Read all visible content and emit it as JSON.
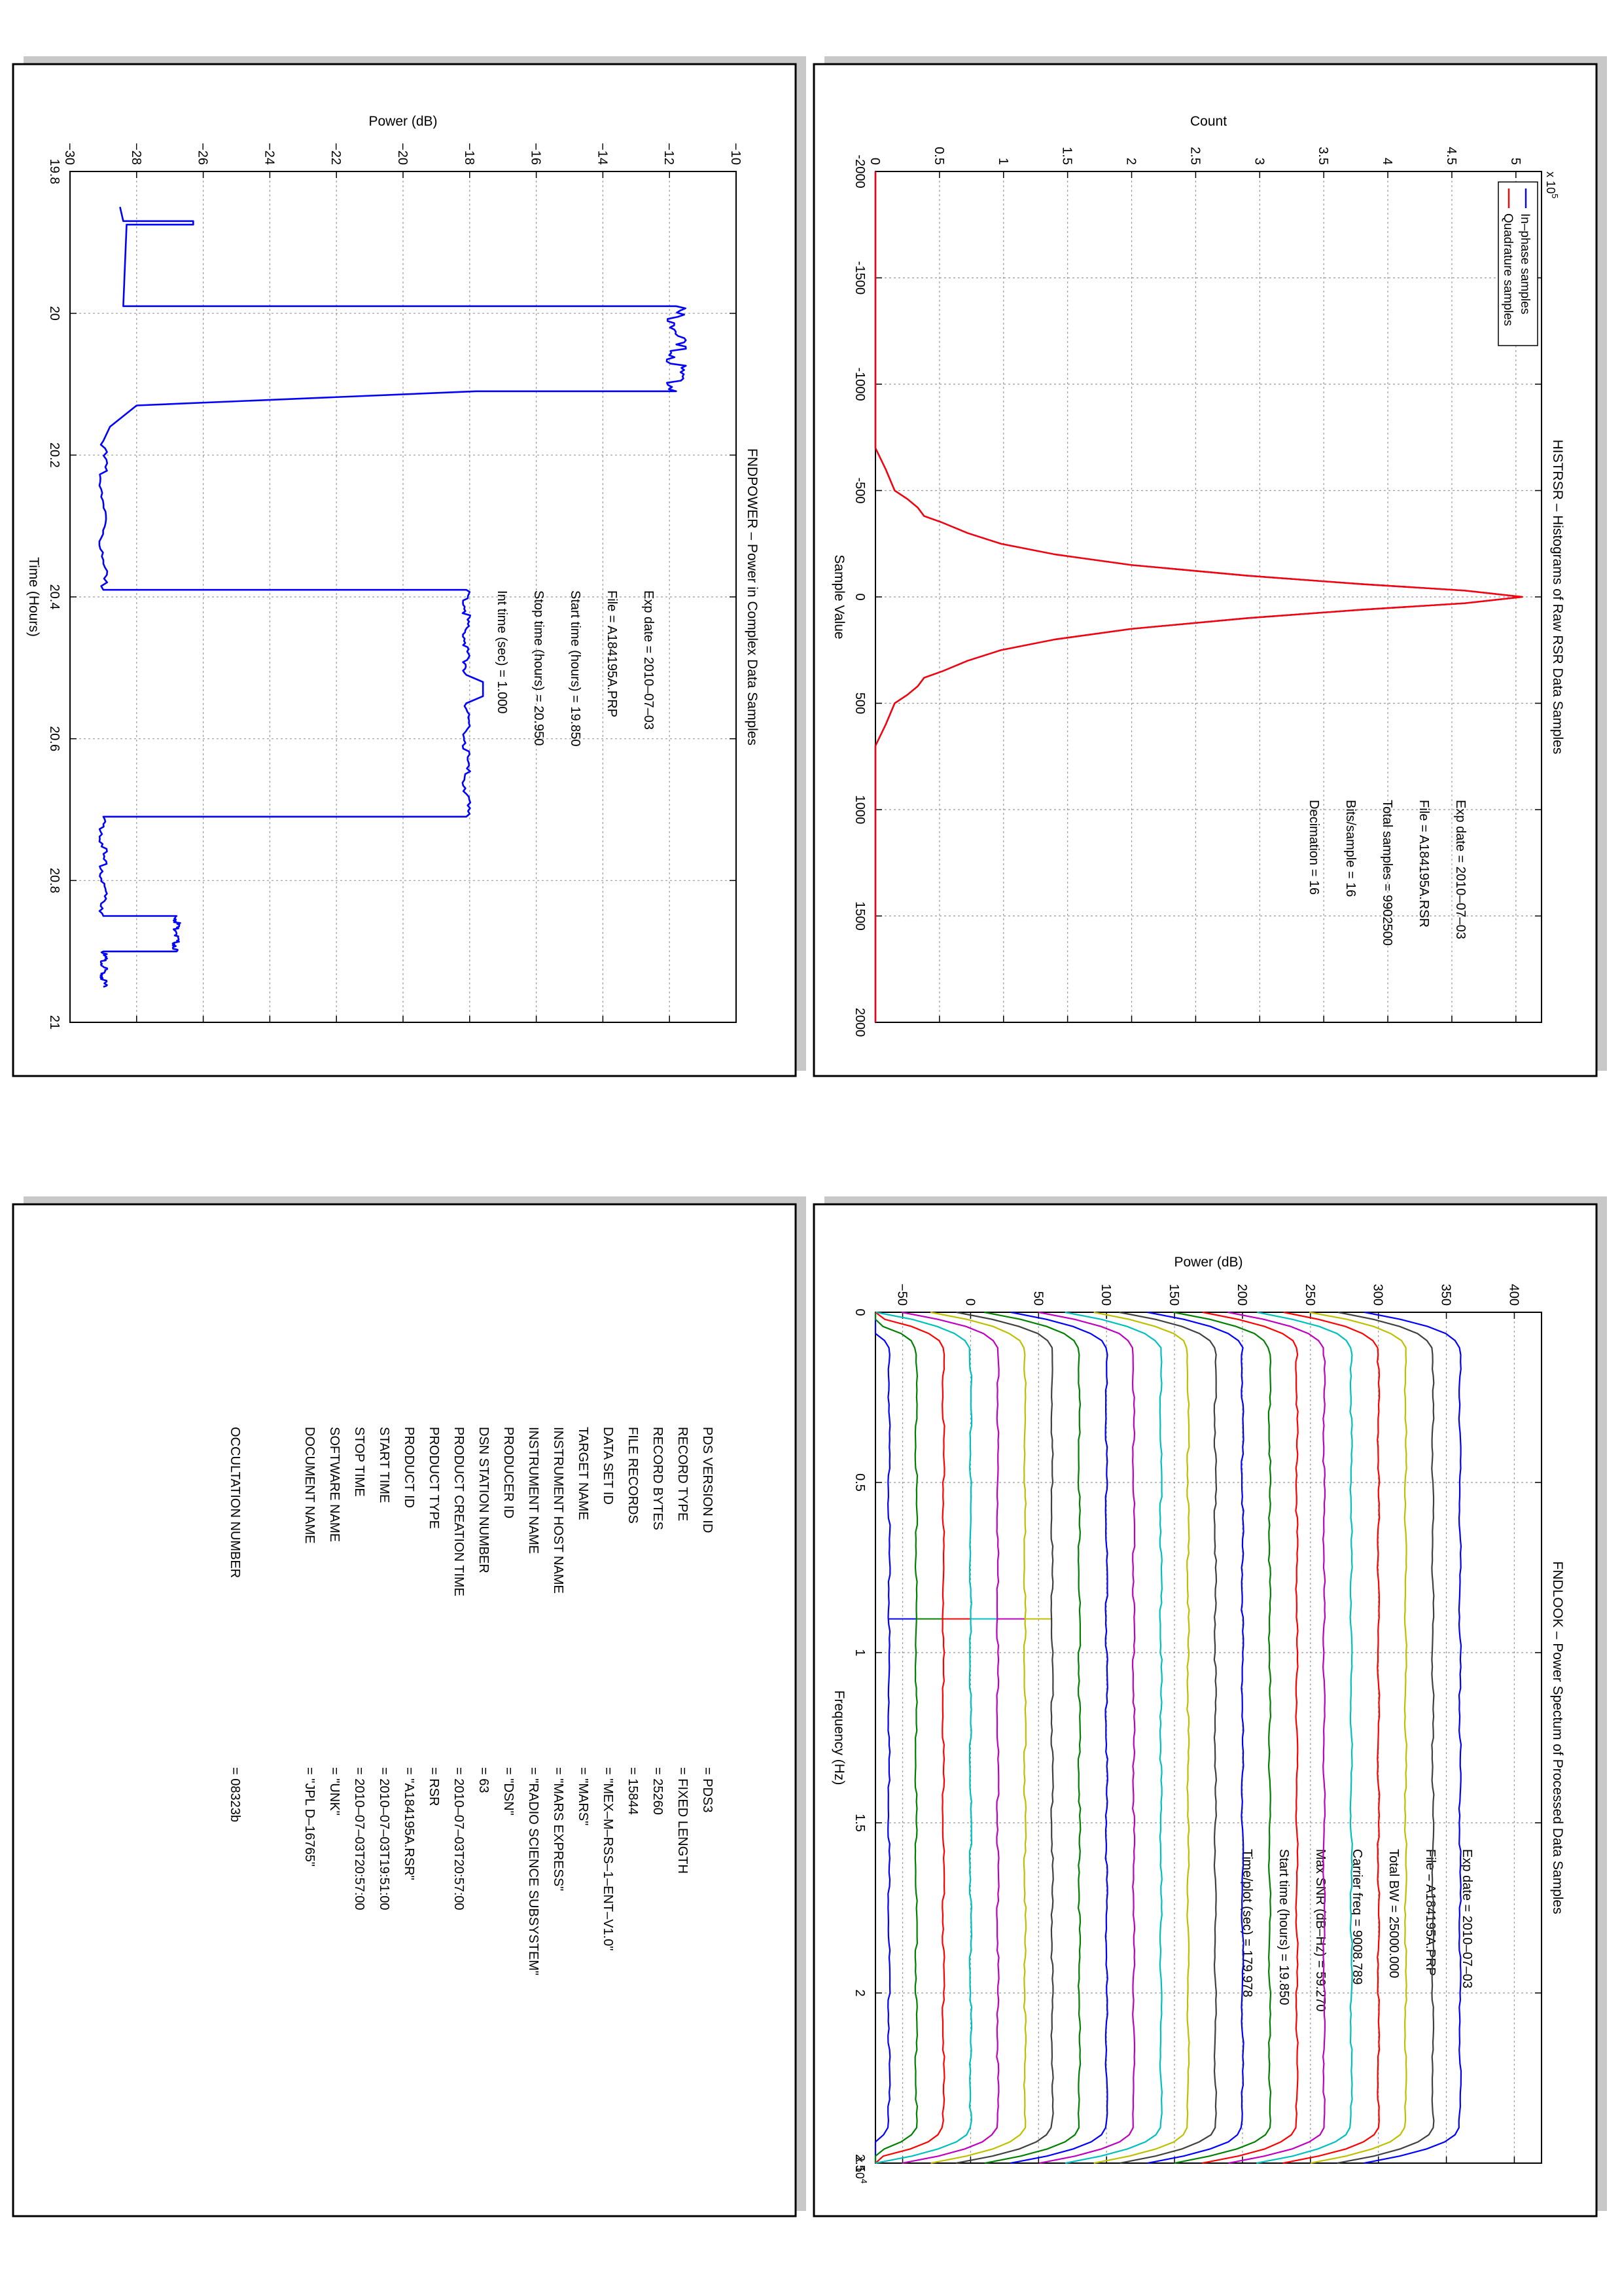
{
  "histrsr": {
    "title": "HISTRSR – Histograms of Raw RSR Data Samples",
    "xlabel": "Sample Value",
    "ylabel": "Count",
    "exponent": "x 10",
    "exponent_power": "5",
    "info": [
      "Exp date = 2010–07–03",
      "File = A184195A.RSR",
      "Total samples =  9902500",
      "Bits/sample   =       16",
      "Decimation    =       16"
    ],
    "legend": [
      "In–phase samples",
      "Quadrature samples"
    ]
  },
  "fndpower": {
    "title": "FNDPOWER – Power in Complex Data Samples",
    "xlabel": "Time (Hours)",
    "ylabel": "Power (dB)",
    "info": [
      "Exp date = 2010–07–03",
      "File = A184195A.PRP",
      "Start time (hours) = 19.850",
      "Stop time (hours) = 20.950",
      "Int time (sec) =    1.000"
    ]
  },
  "fndlook": {
    "title": "FNDLOOK – Power Spectum of Processed Data Samples",
    "xlabel": "Frequency (Hz)",
    "ylabel": "Power (dB)",
    "exponent": "x 10",
    "exponent_power": "4",
    "info": [
      "Exp date = 2010–07–03",
      "File = A184195A.PRP",
      "Total BW =     25000.000",
      "Carrier freq =   9008.789",
      "Max SNR (dB–Hz) =    59.270",
      "Start time (hours) =  19.850",
      "Time/plot (sec) =    179.978"
    ]
  },
  "label_table": {
    "rows": [
      {
        "key": "PDS VERSION ID",
        "value": "= PDS3"
      },
      {
        "key": "RECORD TYPE",
        "value": "= FIXED LENGTH"
      },
      {
        "key": "RECORD BYTES",
        "value": "= 25260"
      },
      {
        "key": "FILE RECORDS",
        "value": "= 15844"
      },
      {
        "key": "DATA SET ID",
        "value": "= \"MEX–M–RSS–1–ENT–V1.0\""
      },
      {
        "key": "TARGET NAME",
        "value": "= \"MARS\""
      },
      {
        "key": "INSTRUMENT HOST NAME",
        "value": "= \"MARS EXPRESS\""
      },
      {
        "key": "INSTRUMENT NAME",
        "value": "= \"RADIO SCIENCE SUBSYSTEM\""
      },
      {
        "key": "PRODUCER ID",
        "value": "= \"DSN\""
      },
      {
        "key": "DSN STATION NUMBER",
        "value": "= 63"
      },
      {
        "key": "PRODUCT CREATION TIME",
        "value": "= 2010–07–03T20:57:00"
      },
      {
        "key": "PRODUCT TYPE",
        "value": "= RSR"
      },
      {
        "key": "PRODUCT ID",
        "value": "= \"A184195A.RSR\""
      },
      {
        "key": "START TIME",
        "value": "= 2010–07–03T19:51:00"
      },
      {
        "key": "STOP TIME",
        "value": "= 2010–07–03T20:57:00"
      },
      {
        "key": "SOFTWARE NAME",
        "value": "= \"UNK\""
      },
      {
        "key": "DOCUMENT NAME",
        "value": "= \"JPL D–16765\""
      },
      {
        "key": "OCCULTATION NUMBER",
        "value": "= 08323b"
      }
    ]
  },
  "chart_data": [
    {
      "name": "HISTRSR",
      "type": "line",
      "title": "HISTRSR – Histograms of Raw RSR Data Samples",
      "xlabel": "Sample Value",
      "ylabel": "Count",
      "y_multiplier": "x 10^5",
      "xlim": [
        -2000,
        2000
      ],
      "ylim": [
        0,
        5.2
      ],
      "xticks": [
        -2000,
        -1500,
        -1000,
        -500,
        0,
        500,
        1000,
        1500,
        2000
      ],
      "yticks": [
        0,
        0.5,
        1,
        1.5,
        2,
        2.5,
        3,
        3.5,
        4,
        4.5,
        5
      ],
      "grid": true,
      "legend_position": "top-left",
      "x": [
        -2000,
        -700,
        -600,
        -500,
        -460,
        -420,
        -380,
        -350,
        -300,
        -250,
        -200,
        -150,
        -100,
        -60,
        -30,
        0,
        30,
        60,
        100,
        150,
        200,
        250,
        300,
        350,
        380,
        420,
        460,
        500,
        600,
        700,
        2000
      ],
      "series": [
        {
          "name": "In–phase samples",
          "color": "#0000ff",
          "values": [
            0,
            0,
            0.08,
            0.15,
            0.25,
            0.33,
            0.38,
            0.52,
            0.72,
            0.98,
            1.4,
            2.0,
            2.9,
            3.8,
            4.6,
            5.05,
            4.6,
            3.8,
            2.9,
            2.0,
            1.4,
            0.98,
            0.72,
            0.52,
            0.38,
            0.33,
            0.25,
            0.15,
            0.08,
            0,
            0
          ]
        },
        {
          "name": "Quadrature samples",
          "color": "#ff0000",
          "values": [
            0,
            0,
            0.08,
            0.15,
            0.25,
            0.33,
            0.38,
            0.52,
            0.72,
            0.98,
            1.4,
            2.0,
            2.9,
            3.8,
            4.6,
            5.05,
            4.6,
            3.8,
            2.9,
            2.0,
            1.4,
            0.98,
            0.72,
            0.52,
            0.38,
            0.33,
            0.25,
            0.15,
            0.08,
            0,
            0
          ]
        }
      ]
    },
    {
      "name": "FNDPOWER",
      "type": "line",
      "title": "FNDPOWER – Power in Complex Data Samples",
      "xlabel": "Time (Hours)",
      "ylabel": "Power (dB)",
      "xlim": [
        19.8,
        21
      ],
      "ylim": [
        -30,
        -10
      ],
      "xticks": [
        19.8,
        20,
        20.2,
        20.4,
        20.6,
        20.8,
        21
      ],
      "yticks": [
        -30,
        -28,
        -26,
        -24,
        -22,
        -20,
        -18,
        -16,
        -14,
        -12,
        -10
      ],
      "grid": true,
      "series": [
        {
          "name": "",
          "color": "#0000ff",
          "x": [
            19.85,
            19.87,
            19.87,
            19.87,
            19.875,
            19.875,
            19.99,
            19.99,
            20.11,
            20.11,
            20.13,
            20.16,
            20.18,
            20.39,
            20.39,
            20.51,
            20.52,
            20.54,
            20.55,
            20.71,
            20.71,
            20.85,
            20.85,
            20.9,
            20.9,
            20.95
          ],
          "values": [
            -28.5,
            -28.4,
            -26.3,
            -26.3,
            -26.3,
            -28.3,
            -28.4,
            -11.8,
            -11.8,
            -17.8,
            -28.0,
            -28.8,
            -29.0,
            -29.0,
            -18.1,
            -18.1,
            -17.6,
            -17.6,
            -18.1,
            -18.1,
            -29.0,
            -29.0,
            -26.8,
            -26.8,
            -29.0,
            -29.0
          ]
        }
      ]
    },
    {
      "name": "FNDLOOK",
      "type": "line",
      "title": "FNDLOOK – Power Spectum of Processed Data Samples",
      "xlabel": "Frequency (Hz)",
      "ylabel": "Power (dB)",
      "x_multiplier": "x 10^4",
      "xlim": [
        0,
        25000
      ],
      "ylim": [
        -70,
        420
      ],
      "xticks": [
        0,
        5000,
        10000,
        15000,
        20000,
        25000
      ],
      "xtick_labels": [
        "0",
        "0.5",
        "1",
        "1.5",
        "2",
        "2.5"
      ],
      "yticks": [
        -50,
        0,
        50,
        100,
        150,
        200,
        250,
        300,
        350,
        400
      ],
      "grid": true,
      "series_baselines_db": [
        -60,
        -40,
        -20,
        0,
        20,
        40,
        60,
        80,
        100,
        120,
        140,
        160,
        180,
        200,
        220,
        240,
        260,
        280,
        300,
        320,
        340,
        360
      ],
      "carrier_frequency_hz": 9008.789,
      "series_colors": [
        "#0000ff",
        "#008000",
        "#ff0000",
        "#00bfbf",
        "#bf00bf",
        "#bfbf00",
        "#404040",
        "#008000",
        "#0000ff",
        "#bf00bf",
        "#00bfbf",
        "#bfbf00",
        "#404040",
        "#0000ff",
        "#008000",
        "#ff0000",
        "#bf00bf",
        "#00bfbf",
        "#ff0000",
        "#bfbf00",
        "#404040",
        "#0000ff"
      ]
    }
  ]
}
